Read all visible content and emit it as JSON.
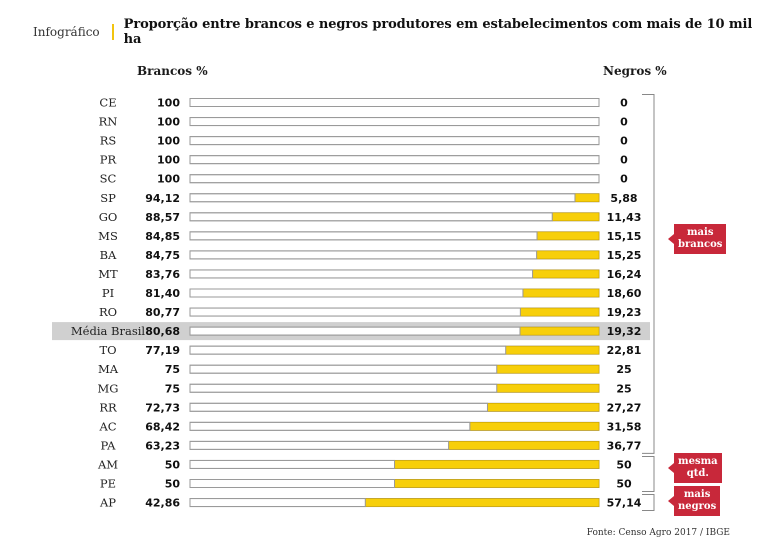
{
  "header": {
    "kicker": "Infográfico",
    "title": "Proporção entre brancos e negros produtores em estabelecimentos com mais de 10 mil ha"
  },
  "colors": {
    "white_bar": "#ffffff",
    "black_bar": "#f7cf0a",
    "bar_stroke": "#9a9a9a",
    "highlight_row": "#d0d0d0",
    "tag": "#c8283a",
    "accent": "#f2c40f"
  },
  "chart_data": {
    "type": "bar",
    "orientation": "horizontal-stacked-100",
    "title": "Proporção entre brancos e negros produtores em estabelecimentos com mais de 10 mil ha",
    "left_label": "Brancos %",
    "right_label": "Negros %",
    "categories": [
      "CE",
      "RN",
      "RS",
      "PR",
      "SC",
      "SP",
      "GO",
      "MS",
      "BA",
      "MT",
      "PI",
      "RO",
      "Média Brasil",
      "TO",
      "MA",
      "MG",
      "RR",
      "AC",
      "PA",
      "AM",
      "PE",
      "AP"
    ],
    "series": [
      {
        "name": "Brancos %",
        "values": [
          100,
          100,
          100,
          100,
          100,
          94.12,
          88.57,
          84.85,
          84.75,
          83.76,
          81.4,
          80.77,
          80.68,
          77.19,
          75,
          75,
          72.73,
          68.42,
          63.23,
          50,
          50,
          42.86
        ]
      },
      {
        "name": "Negros %",
        "values": [
          0,
          0,
          0,
          0,
          0,
          5.88,
          11.43,
          15.15,
          15.25,
          16.24,
          18.6,
          19.23,
          19.32,
          22.81,
          25,
          25,
          27.27,
          31.58,
          36.77,
          50,
          50,
          57.14
        ]
      }
    ],
    "labels_left": [
      "100",
      "100",
      "100",
      "100",
      "100",
      "94,12",
      "88,57",
      "84,85",
      "84,75",
      "83,76",
      "81,40",
      "80,77",
      "80,68",
      "77,19",
      "75",
      "75",
      "72,73",
      "68,42",
      "63,23",
      "50",
      "50",
      "42,86"
    ],
    "labels_right": [
      "0",
      "0",
      "0",
      "0",
      "0",
      "5,88",
      "11,43",
      "15,15",
      "15,25",
      "16,24",
      "18,60",
      "19,23",
      "19,32",
      "22,81",
      "25",
      "25",
      "27,27",
      "31,58",
      "36,77",
      "50",
      "50",
      "57,14"
    ],
    "highlight_category": "Média Brasil",
    "xlim": [
      0,
      100
    ],
    "groups": [
      {
        "label": "mais brancos",
        "from": "CE",
        "to": "PA"
      },
      {
        "label": "mesma qtd.",
        "from": "AM",
        "to": "PE"
      },
      {
        "label": "mais negros",
        "from": "AP",
        "to": "AP"
      }
    ],
    "source": "Fonte: Censo Agro 2017 / IBGE"
  },
  "tags": {
    "more_white": [
      "mais",
      "brancos"
    ],
    "same": [
      "mesma",
      "qtd."
    ],
    "more_black": [
      "mais",
      "negros"
    ]
  },
  "footer": {
    "source": "Fonte: Censo Agro 2017 / IBGE"
  }
}
